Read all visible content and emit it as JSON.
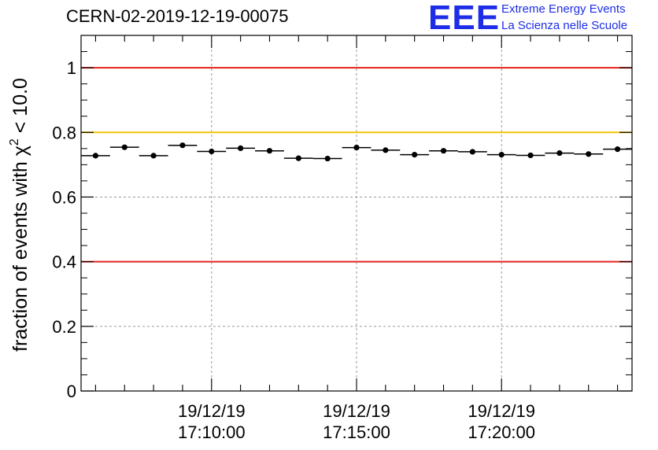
{
  "run_label": "CERN-02-2019-12-19-00075",
  "logo": {
    "mark": "EEE",
    "line1": "Extreme Energy Events",
    "line2": "La Scienza nelle Scuole",
    "color": "#1e2ee6"
  },
  "chart_data": {
    "type": "scatter",
    "title": "CERN-02-2019-12-19-00075",
    "xlabel": "",
    "ylabel_prefix": "fraction of events with ",
    "ylabel_chi": "χ",
    "ylabel_sup": "2",
    "ylabel_suffix": " < 10.0",
    "x_unit": "minutes after 17:00:00 (19/12/19)",
    "xlim": [
      5.5,
      24.5
    ],
    "ylim": [
      0,
      1.1
    ],
    "yticks": [
      {
        "v": 0,
        "label": "0"
      },
      {
        "v": 0.2,
        "label": "0.2"
      },
      {
        "v": 0.4,
        "label": "0.4"
      },
      {
        "v": 0.6,
        "label": "0.6"
      },
      {
        "v": 0.8,
        "label": "0.8"
      },
      {
        "v": 1,
        "label": "1"
      }
    ],
    "xticks": [
      {
        "v": 10,
        "date": "19/12/19",
        "time": "17:10:00"
      },
      {
        "v": 15,
        "date": "19/12/19",
        "time": "17:15:00"
      },
      {
        "v": 20,
        "date": "19/12/19",
        "time": "17:20:00"
      }
    ],
    "bin_width": 1,
    "x": [
      6,
      7,
      8,
      9,
      10,
      11,
      12,
      13,
      14,
      15,
      16,
      17,
      18,
      19,
      20,
      21,
      22,
      23,
      24
    ],
    "y": [
      0.728,
      0.754,
      0.728,
      0.76,
      0.741,
      0.751,
      0.743,
      0.72,
      0.719,
      0.753,
      0.745,
      0.731,
      0.743,
      0.74,
      0.731,
      0.729,
      0.736,
      0.733,
      0.748
    ],
    "reference_lines": [
      {
        "y": 1.0,
        "color": "#e8211a"
      },
      {
        "y": 0.8,
        "color": "#f5c300"
      },
      {
        "y": 0.4,
        "color": "#e8211a"
      }
    ],
    "grid": true,
    "marker_color": "#000000"
  }
}
